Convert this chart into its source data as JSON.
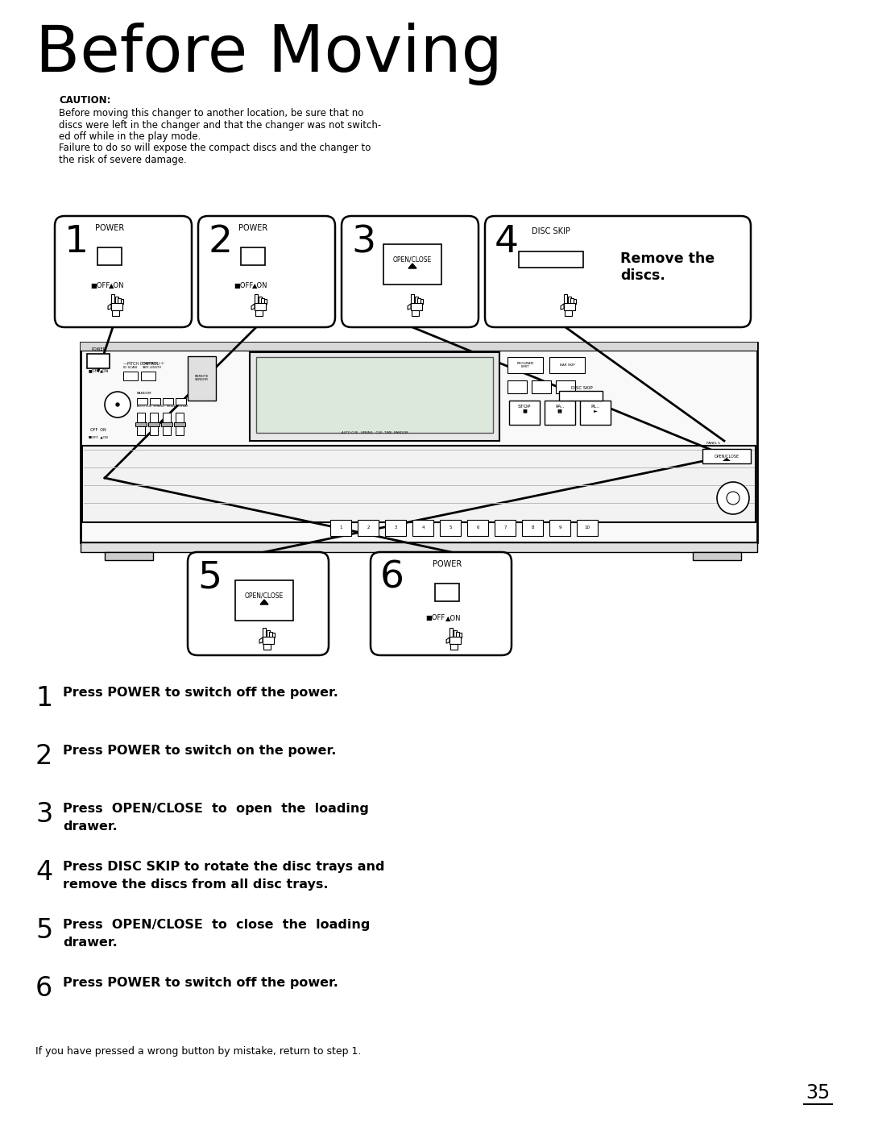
{
  "title": "Before Moving",
  "title_fontsize": 58,
  "bg_color": "#ffffff",
  "text_color": "#000000",
  "caution_title": "CAUTION:",
  "caution_lines": [
    "Before moving this changer to another location, be sure that no",
    "discs were left in the changer and that the changer was not switch-",
    "ed off while in the play mode.",
    "Failure to do so will expose the compact discs and the changer to",
    "the risk of severe damage."
  ],
  "steps": [
    {
      "num": "1",
      "text": "Press POWER to switch off the power."
    },
    {
      "num": "2",
      "text": "Press POWER to switch on the power."
    },
    {
      "num": "3",
      "text": "Press  OPEN/CLOSE  to  open  the  loading\ndrawer."
    },
    {
      "num": "4",
      "text": "Press DISC SKIP to rotate the disc trays and\nremove the discs from all disc trays."
    },
    {
      "num": "5",
      "text": "Press  OPEN/CLOSE  to  close  the  loading\ndrawer."
    },
    {
      "num": "6",
      "text": "Press POWER to switch off the power."
    }
  ],
  "footer": "If you have pressed a wrong button by mistake, return to step 1.",
  "page_number": "35",
  "remove_discs_text": "Remove the\ndiscs."
}
